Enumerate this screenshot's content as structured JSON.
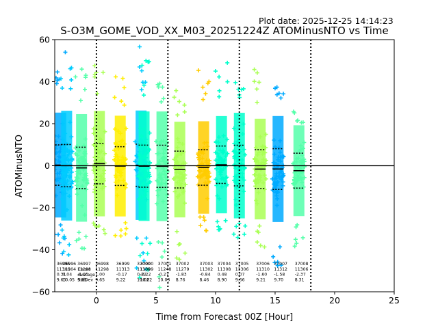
{
  "plot_date": "Plot date: 2025-12-25 14:14:23",
  "chart_data": {
    "type": "scatter",
    "title": "S-O3M_GOME_VOD_XX_M03_20251224Z ATOMinusNTO vs Time",
    "xlabel": "Time from Forecast 00Z [Hour]",
    "ylabel": "ATOMinusNTO",
    "xlim": [
      -3.5,
      25
    ],
    "ylim": [
      -60,
      60
    ],
    "xticks": [
      0,
      5,
      10,
      15,
      20,
      25
    ],
    "yticks": [
      -60,
      -40,
      -20,
      0,
      20,
      40,
      60
    ],
    "grid": false,
    "reference_line_y": 0,
    "vertical_dotted_lines_x": [
      0,
      6,
      12,
      18
    ],
    "stats_row_labels": [
      "Count",
      "Average",
      "StdDev"
    ],
    "bins": [
      {
        "x": -3.0,
        "id": "36995",
        "count": "11306",
        "average": "0.31",
        "stddev": "9.60",
        "mean": 0.31,
        "std": 9.6,
        "min": -42,
        "max": 58,
        "color": "#00aaff"
      },
      {
        "x": -2.5,
        "id": "36996",
        "count": "11304",
        "average": "0.04",
        "stddev": "10.05",
        "mean": 0.04,
        "std": 10.05,
        "min": -45,
        "max": 52,
        "color": "#00ccff"
      },
      {
        "x": -1.25,
        "id": "36997",
        "count": "11298",
        "average": "-1.05",
        "stddev": "9.85",
        "mean": -1.05,
        "std": 9.85,
        "min": -46,
        "max": 46,
        "color": "#55ffaa"
      },
      {
        "x": 0.25,
        "id": "36998",
        "count": "11298",
        "average": "1.00",
        "stddev": "9.65",
        "mean": 1.0,
        "std": 9.65,
        "min": -35,
        "max": 50,
        "color": "#aaff55"
      },
      {
        "x": 2.0,
        "id": "36999",
        "count": "11313",
        "average": "-0.17",
        "stddev": "9.22",
        "mean": -0.17,
        "std": 9.22,
        "min": -35,
        "max": 44,
        "color": "#ffee00"
      },
      {
        "x": 3.75,
        "id": "37000",
        "count": "11309",
        "average": "0.22",
        "stddev": "10.02",
        "mean": 0.22,
        "std": 10.02,
        "min": -50,
        "max": 58,
        "color": "#00ccff"
      },
      {
        "x": 4.0,
        "id": "37000",
        "count": "11309",
        "average": "-0.22",
        "stddev": "10.02",
        "mean": -0.22,
        "std": 10.02,
        "min": -55,
        "max": 50,
        "color": "#00ffcc"
      },
      {
        "x": 5.5,
        "id": "37001",
        "count": "11248",
        "average": "-0.27",
        "stddev": "10.03",
        "mean": -0.27,
        "std": 10.03,
        "min": -60,
        "max": 43,
        "color": "#55ffaa"
      },
      {
        "x": 7.0,
        "id": "37002",
        "count": "11279",
        "average": "-1.83",
        "stddev": "8.76",
        "mean": -1.83,
        "std": 8.76,
        "min": -45,
        "max": 36,
        "color": "#aaff55"
      },
      {
        "x": 9.0,
        "id": "37003",
        "count": "11302",
        "average": "-0.84",
        "stddev": "8.46",
        "mean": -0.84,
        "std": 8.46,
        "min": -33,
        "max": 47,
        "color": "#ffcc00"
      },
      {
        "x": 10.5,
        "id": "37004",
        "count": "11308",
        "average": "0.48",
        "stddev": "8.90",
        "mean": 0.48,
        "std": 8.9,
        "min": -33,
        "max": 50,
        "color": "#00ffcc"
      },
      {
        "x": 12.0,
        "id": "37005",
        "count": "11306",
        "average": "0.07",
        "stddev": "9.66",
        "mean": 0.07,
        "std": 9.66,
        "min": -38,
        "max": 41,
        "color": "#00ffcc"
      },
      {
        "x": 13.75,
        "id": "37006",
        "count": "11310",
        "average": "-1.60",
        "stddev": "9.21",
        "mean": -1.6,
        "std": 9.21,
        "min": -40,
        "max": 48,
        "color": "#aaff55"
      },
      {
        "x": 15.25,
        "id": "37007",
        "count": "11312",
        "average": "-1.58",
        "stddev": "9.70",
        "mean": -1.58,
        "std": 9.7,
        "min": -52,
        "max": 38,
        "color": "#00aaff"
      },
      {
        "x": 17.0,
        "id": "37008",
        "count": "11306",
        "average": "-2.37",
        "stddev": "8.31",
        "mean": -2.37,
        "std": 8.31,
        "min": -40,
        "max": 28,
        "color": "#55ffaa"
      }
    ]
  }
}
